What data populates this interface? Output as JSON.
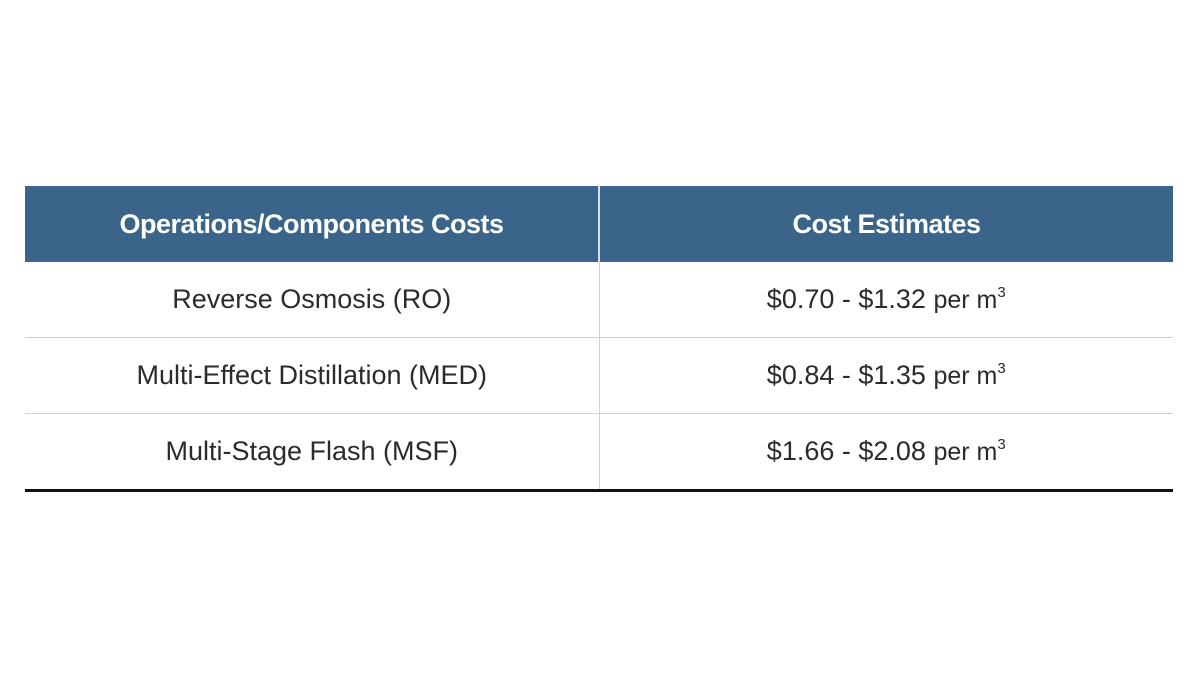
{
  "table": {
    "headers": [
      "Operations/Components Costs",
      "Cost Estimates"
    ],
    "rows": [
      {
        "component": "Reverse Osmosis (RO)",
        "cost_range": "$0.70 - $1.32",
        "unit": "per m",
        "exponent": "3"
      },
      {
        "component": "Multi-Effect Distillation (MED)",
        "cost_range": "$0.84 - $1.35",
        "unit": "per m",
        "exponent": "3"
      },
      {
        "component": "Multi-Stage Flash (MSF)",
        "cost_range": "$1.66 - $2.08",
        "unit": "per m",
        "exponent": "3"
      }
    ],
    "colors": {
      "header_bg": "#3a6489",
      "header_text": "#ffffff",
      "body_text": "#2b2b2b",
      "row_divider": "#cfcfcf",
      "bottom_rule": "#111111"
    }
  }
}
